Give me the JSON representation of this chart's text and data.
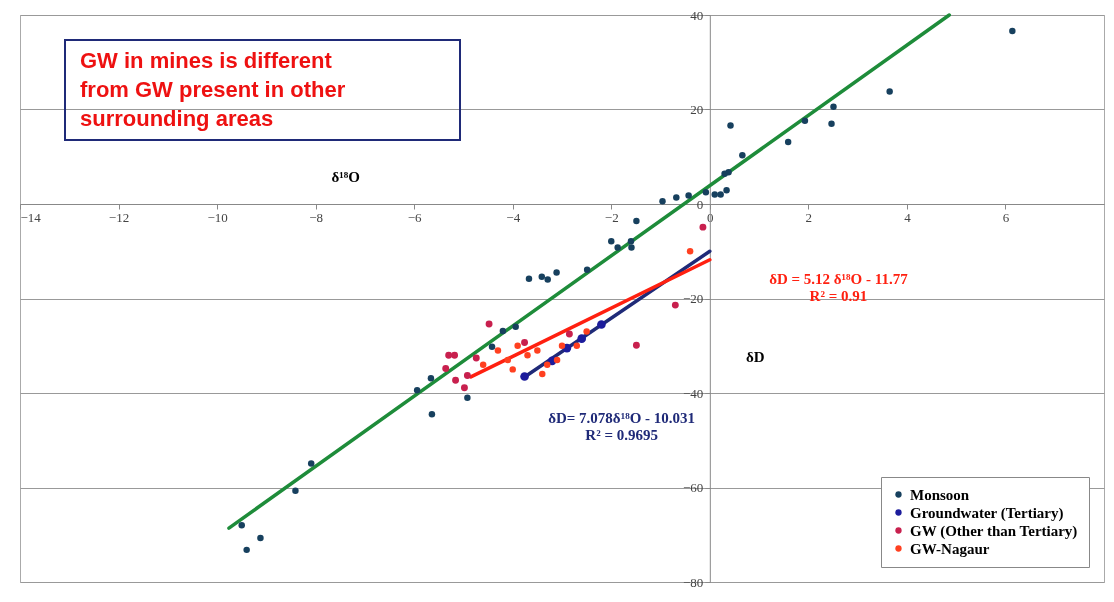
{
  "chart_data": {
    "type": "scatter",
    "xlabel": "δ¹⁸O",
    "ylabel": "δD",
    "xlim": [
      -14,
      8
    ],
    "xticks": [
      -14,
      -12,
      -10,
      -8,
      -6,
      -4,
      -2,
      0,
      2,
      4,
      6
    ],
    "ylim": [
      -80,
      40
    ],
    "yticks": [
      -80,
      -60,
      -40,
      -20,
      0,
      20,
      40
    ],
    "grid": "y",
    "legend": "bottom right",
    "marker": "circle",
    "series": [
      {
        "name": "Monsoon",
        "color": "#17405e",
        "x": [
          6.14,
          3.65,
          2.51,
          2.47,
          1.93,
          1.59,
          0.42,
          0.66,
          0.38,
          0.3,
          0.34,
          0.22,
          0.1,
          -0.08,
          -0.43,
          -0.68,
          -0.96,
          -1.49,
          -2.0,
          -1.87,
          -1.6,
          -1.59,
          -2.49,
          -3.11,
          -3.41,
          -3.29,
          -3.67,
          -3.94,
          -4.2,
          -4.42,
          -5.66,
          -5.94,
          -4.92,
          -5.64,
          -8.09,
          -8.41,
          -9.5,
          -9.12,
          -9.4
        ],
        "values": [
          36.6,
          23.8,
          20.6,
          17.0,
          17.6,
          13.1,
          16.6,
          10.3,
          6.7,
          6.4,
          2.9,
          2.0,
          2.0,
          2.5,
          1.8,
          1.4,
          0.6,
          -3.6,
          -7.9,
          -9.2,
          -7.9,
          -9.2,
          -13.9,
          -14.5,
          -15.4,
          -16.0,
          -15.8,
          -26.0,
          -26.9,
          -30.2,
          -36.9,
          -39.4,
          -41.0,
          -44.5,
          -54.9,
          -60.7,
          -68.0,
          -70.7,
          -73.2
        ]
      },
      {
        "name": "Groundwater (Tertiary)",
        "color": "#1c1c9c",
        "x": [
          -3.76,
          -3.2,
          -2.9,
          -2.6,
          -2.2
        ],
        "values": [
          -36.5,
          -33.2,
          -30.5,
          -28.5,
          -25.5
        ]
      },
      {
        "name": "GW (Other than Tertiary)",
        "color": "#c8204e",
        "x": [
          -4.48,
          -5.3,
          -5.18,
          -5.36,
          -5.16,
          -4.98,
          -4.92,
          -4.74,
          -3.76,
          -2.85,
          -1.49,
          -0.7,
          -0.14
        ],
        "values": [
          -25.4,
          -32.0,
          -32.0,
          -34.8,
          -37.3,
          -38.9,
          -36.3,
          -32.6,
          -29.3,
          -27.5,
          -29.9,
          -21.4,
          -4.9
        ]
      },
      {
        "name": "GW-Nagaur",
        "color": "#ff4020",
        "x": [
          -4.6,
          -4.3,
          -4.1,
          -4.0,
          -3.9,
          -3.7,
          -3.5,
          -3.4,
          -3.3,
          -3.1,
          -3.0,
          -2.7,
          -2.5,
          -0.4
        ],
        "values": [
          -34,
          -31,
          -33,
          -35,
          -30,
          -32,
          -31,
          -36,
          -34,
          -33,
          -30,
          -30,
          -27,
          -10
        ]
      },
      {
        "type": "line",
        "marker": "none",
        "color": "#1e8c3a",
        "x": [
          -9.76,
          4.86
        ],
        "values": [
          -68.6,
          40
        ]
      },
      {
        "type": "line",
        "marker": "none",
        "color": "#1f2a78",
        "x": [
          -3.76,
          0
        ],
        "values": [
          -36.6,
          -10.0
        ]
      },
      {
        "type": "line",
        "marker": "none",
        "color": "#ff2010",
        "x": [
          -4.85,
          0
        ],
        "values": [
          -36.6,
          -11.8
        ]
      }
    ],
    "annotations": [
      "GW in mines is different\nfrom GW present in other\nsurrounding areas",
      "δD = 5.12 δ¹⁸O - 11.77\nR² = 0.91",
      "δD= 7.078δ¹⁸O - 10.031\nR² = 0.9695"
    ]
  }
}
